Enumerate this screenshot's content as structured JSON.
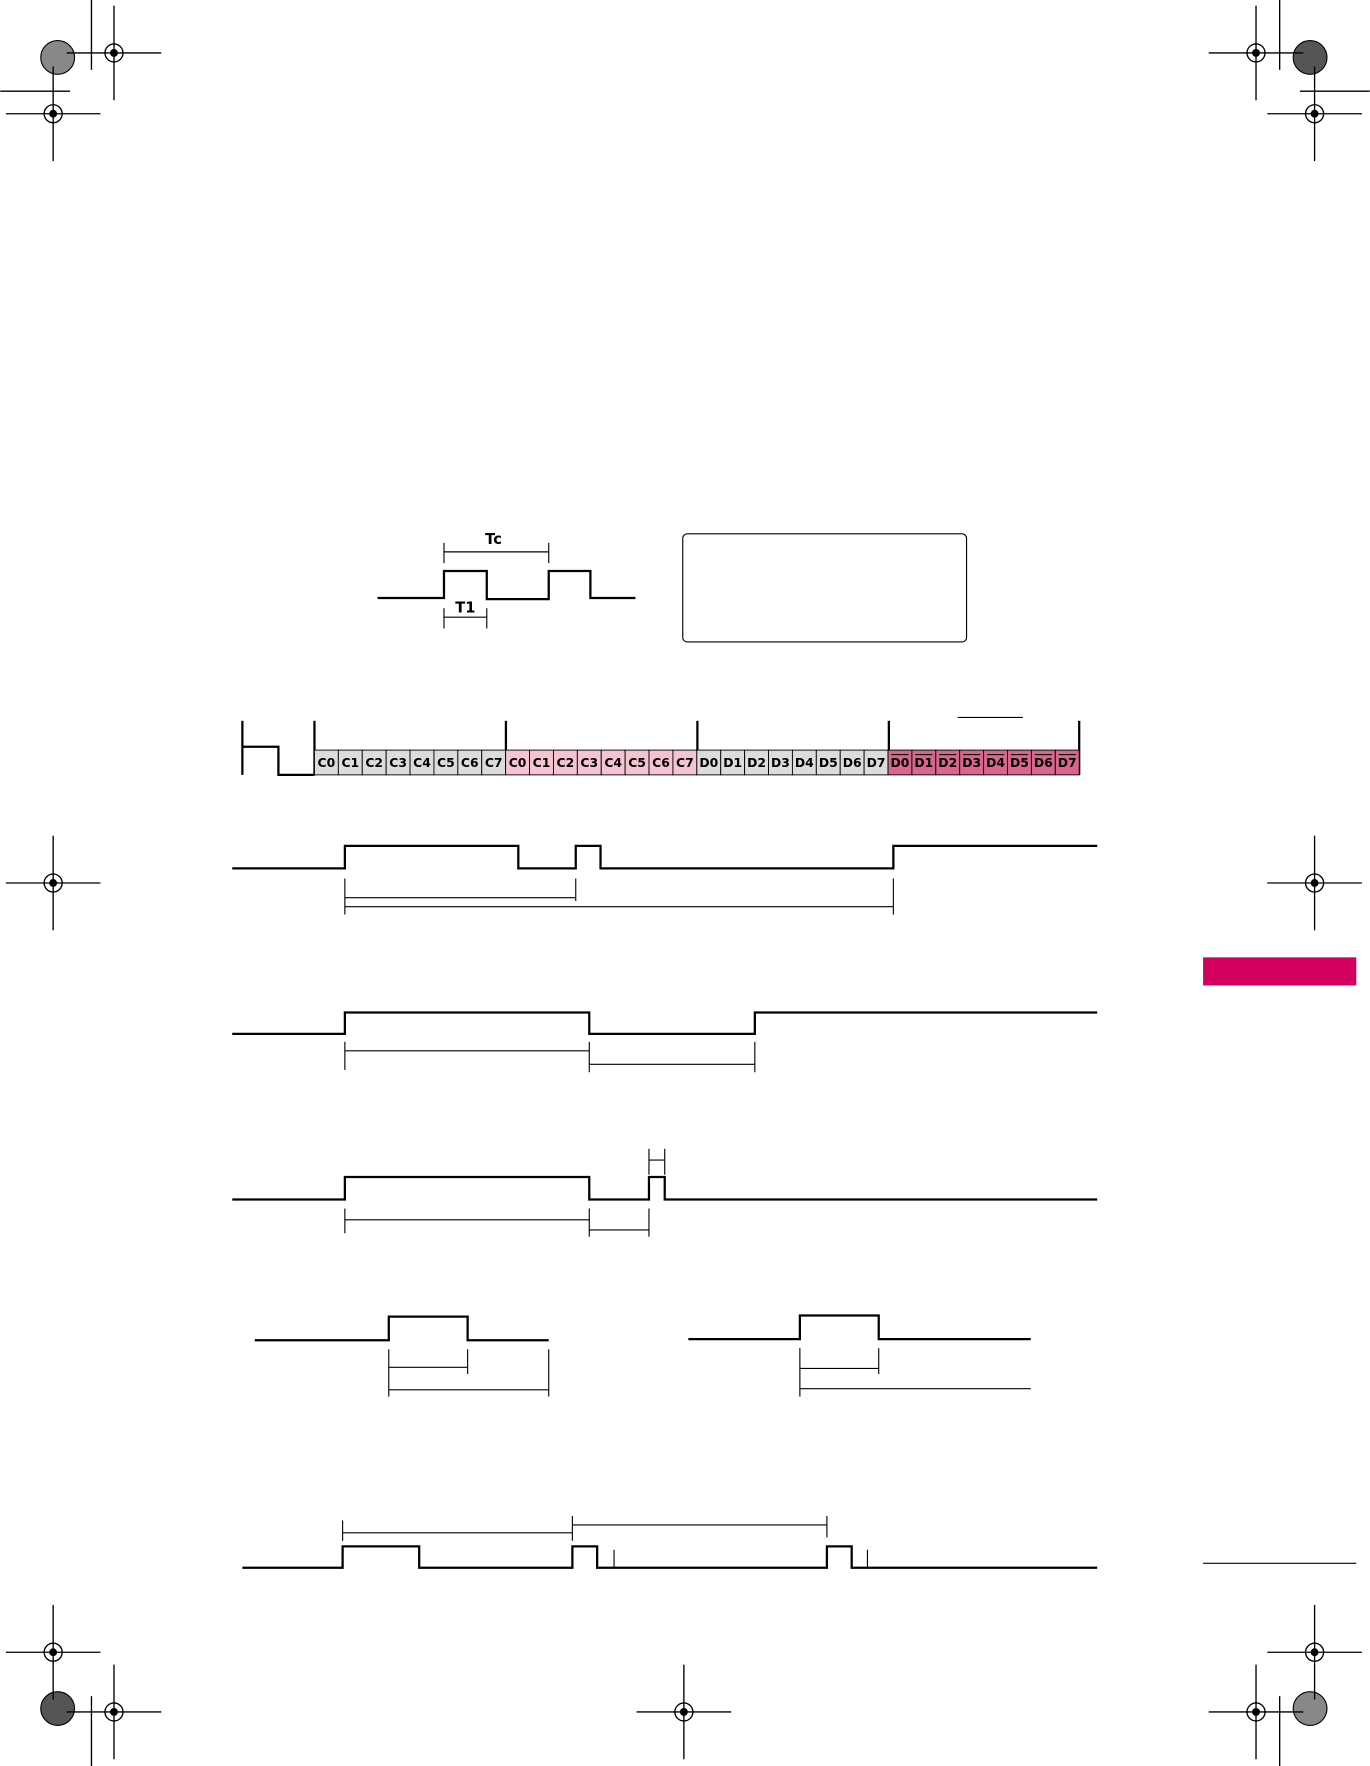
{
  "pulse": {
    "tc": "Tc",
    "t1": "T1"
  },
  "bits": {
    "custom": [
      "C0",
      "C1",
      "C2",
      "C3",
      "C4",
      "C5",
      "C6",
      "C7"
    ],
    "custom_repeat": [
      "C0",
      "C1",
      "C2",
      "C3",
      "C4",
      "C5",
      "C6",
      "C7"
    ],
    "data": [
      "D0",
      "D1",
      "D2",
      "D3",
      "D4",
      "D5",
      "D6",
      "D7"
    ],
    "data_inverted": [
      "D0",
      "D1",
      "D2",
      "D3",
      "D4",
      "D5",
      "D6",
      "D7"
    ]
  }
}
